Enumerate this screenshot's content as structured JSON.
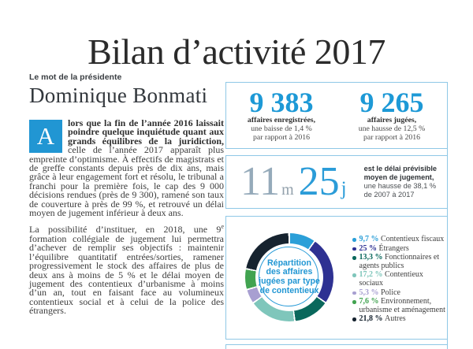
{
  "page_title": "Bilan d’activité 2017",
  "article": {
    "kicker": "Le mot de la présidente",
    "author": "Dominique Bonmati",
    "dropcap": "A",
    "p1_bold": "lors que la fin de l’année 2016 laissait poindre quelque inquiétude quant aux grands équilibres de la juridiction,",
    "p1_rest": " celle de l’année 2017 apparaît plus empreinte d’optimisme. À effectifs de magistrats et de greffe constants depuis près de dix ans, mais grâce à leur engagement fort et résolu, le tribunal a franchi pour la première fois, le cap des 9 000 décisions rendues (près de 9 300), ramené son taux de couverture à près de 99 %, et retrouvé un délai moyen de jugement inférieur à deux ans.",
    "p2_before_sup": "La possibilité d’instituer, en 2018, une 9",
    "p2_sup": "e",
    "p2_after_sup": " formation collégiale de jugement lui permettra d’achever de remplir ses objectifs : maintenir l’équilibre quantitatif entrées/sorties, ramener progressivement le stock des affaires de plus de deux ans à moins de 5 % et le délai moyen de jugement des contentieux d’urbanisme à moins d’un an, tout en faisant face au volumineux contentieux social et à celui de la police des étrangers."
  },
  "stats": [
    {
      "value": "9 383",
      "label_bold": "affaires enregistrées,",
      "label_line2": "une baisse de 1,4 %",
      "label_line3": "par rapport à 2016"
    },
    {
      "value": "9 265",
      "label_bold": "affaires jugées,",
      "label_line2": "une hausse de 12,5 %",
      "label_line3": "par rapport à 2016"
    }
  ],
  "delay": {
    "months_value": "11",
    "months_unit": "m",
    "days_value": "25",
    "days_unit": "j",
    "caption_bold1": "est le délai prévisible",
    "caption_bold2": "moyen de jugement,",
    "caption_line3": "une hausse de 38,1 %",
    "caption_line4": "de 2007 à 2017"
  },
  "colors": {
    "accent_blue": "#2196d3",
    "stat_number_blue": "#1d99d6",
    "delay_months_gray": "#95aaba",
    "box_border_blue": "#8fc8e6"
  },
  "chart_data": {
    "type": "pie",
    "title": "Répartition des affaires jugées par type de contentieux",
    "center_lines": [
      "Répartition",
      "des affaires",
      "jugées par type",
      "de contentieux"
    ],
    "legend_position": "right",
    "start_angle_deg": 0,
    "direction": "clockwise",
    "donut": true,
    "segments": [
      {
        "label": "Contentieux fiscaux",
        "value": 9.7,
        "value_label": "9,7 %",
        "color": "#2b9fd8"
      },
      {
        "label": "Étrangers",
        "value": 25,
        "value_label": "25 %",
        "color": "#2e3192"
      },
      {
        "label": "Fonctionnaires et agents publics",
        "value": 13.3,
        "value_label": "13,3 %",
        "color": "#0a685c"
      },
      {
        "label": "Contentieux sociaux",
        "value": 17.2,
        "value_label": "17,2 %",
        "color": "#7fc6bb"
      },
      {
        "label": "Police",
        "value": 5.3,
        "value_label": "5,3 %",
        "color": "#a89fd1"
      },
      {
        "label": "Environnement, urbanisme et aménagement",
        "value": 7.6,
        "value_label": "7,6 %",
        "color": "#41a350"
      },
      {
        "label": "Autres",
        "value": 21.8,
        "value_label": "21,8 %",
        "color": "#16232f"
      }
    ]
  }
}
